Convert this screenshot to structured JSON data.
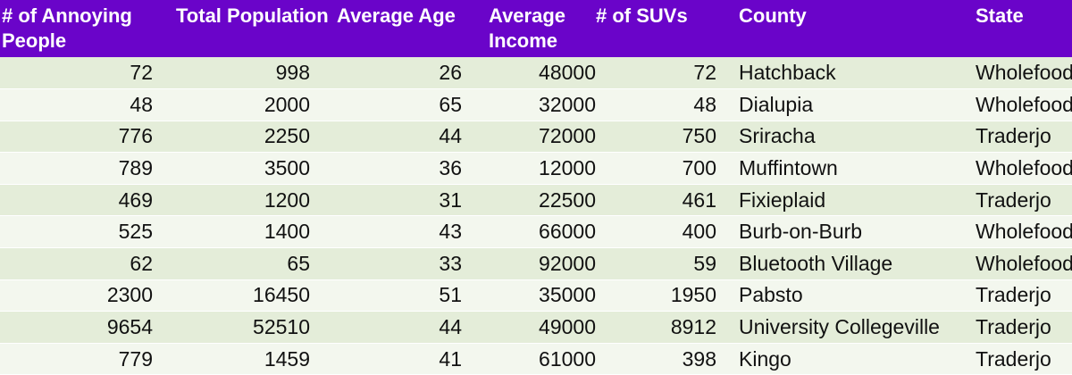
{
  "table": {
    "headers": [
      "# of Annoying People",
      "Total Population",
      "Average Age",
      "Average Income",
      "# of SUVs",
      "County",
      "State"
    ],
    "rows": [
      [
        "72",
        "998",
        "26",
        "48000",
        "72",
        "Hatchback",
        "Wholefood"
      ],
      [
        "48",
        "2000",
        "65",
        "32000",
        "48",
        "Dialupia",
        "Wholefood"
      ],
      [
        "776",
        "2250",
        "44",
        "72000",
        "750",
        "Sriracha",
        "Traderjo"
      ],
      [
        "789",
        "3500",
        "36",
        "12000",
        "700",
        "Muffintown",
        "Wholefood"
      ],
      [
        "469",
        "1200",
        "31",
        "22500",
        "461",
        "Fixieplaid",
        "Traderjo"
      ],
      [
        "525",
        "1400",
        "43",
        "66000",
        "400",
        "Burb-on-Burb",
        "Wholefood"
      ],
      [
        "62",
        "65",
        "33",
        "92000",
        "59",
        "Bluetooth Village",
        "Wholefood"
      ],
      [
        "2300",
        "16450",
        "51",
        "35000",
        "1950",
        "Pabsto",
        "Traderjo"
      ],
      [
        "9654",
        "52510",
        "44",
        "49000",
        "8912",
        "University Collegeville",
        "Traderjo"
      ],
      [
        "779",
        "1459",
        "41",
        "61000",
        "398",
        "Kingo",
        "Traderjo"
      ]
    ]
  },
  "colors": {
    "header_bg": "#6a04c9",
    "header_text": "#ffffff",
    "row_odd": "#e4edd9",
    "row_even": "#f3f7ee"
  }
}
